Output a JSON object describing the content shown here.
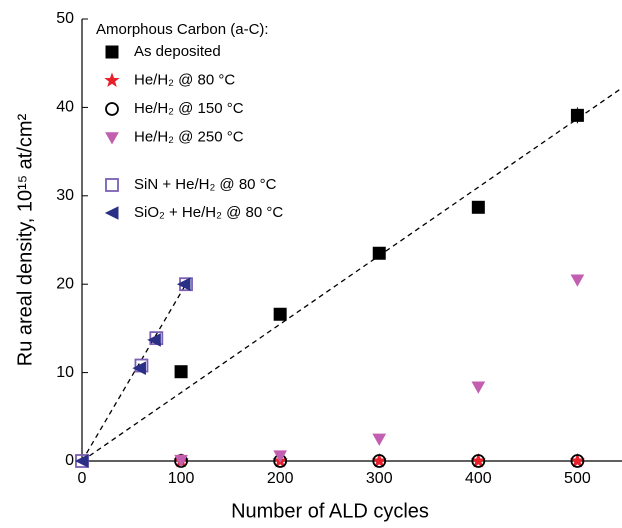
{
  "chart_data": {
    "type": "scatter",
    "x_label": "Number of ALD cycles",
    "y_label": "Ru areal density, 10¹⁵ at/cm²",
    "legend_title": "Amorphous Carbon (a-C):",
    "legend": "upper left",
    "xlim": [
      0,
      545
    ],
    "xticks": [
      0,
      100,
      200,
      300,
      400,
      500
    ],
    "ylim": [
      0,
      50
    ],
    "yticks": [
      0,
      10,
      20,
      30,
      40,
      50
    ],
    "series": [
      {
        "name": "As deposited",
        "color": "#000000",
        "marker": "square",
        "filled": true,
        "x": [
          100,
          200,
          300,
          400,
          500
        ],
        "values": [
          10.1,
          16.6,
          23.5,
          28.7,
          39.1
        ],
        "errors": [
          0.3,
          0.4,
          0.5,
          0.6,
          0.9
        ]
      },
      {
        "name": "He/H₂ @ 80 °C",
        "color": "#e8202a",
        "marker": "star",
        "filled": true,
        "x": [
          100,
          200,
          300,
          400,
          500
        ],
        "values": [
          0,
          0,
          0,
          0,
          0
        ]
      },
      {
        "name": "He/H₂ @ 150 °C",
        "color": "#000000",
        "marker": "circle",
        "filled": false,
        "x": [
          100,
          200,
          300,
          400,
          500
        ],
        "values": [
          0,
          0,
          0,
          0,
          0
        ]
      },
      {
        "name": "He/H₂ @ 250 °C",
        "color": "#c25fb0",
        "marker": "triangle-down",
        "filled": true,
        "x": [
          100,
          200,
          300,
          400,
          500
        ],
        "values": [
          0.1,
          0.6,
          2.5,
          8.4,
          20.5
        ]
      },
      {
        "name": "SiN + He/H₂ @ 80 °C",
        "color": "#7a5fb5",
        "marker": "square",
        "filled": false,
        "x": [
          0,
          60,
          75,
          105
        ],
        "values": [
          0,
          10.8,
          13.9,
          20
        ]
      },
      {
        "name": "SiO₂ + He/H₂ @ 80 °C",
        "color": "#2b2f86",
        "marker": "triangle-left",
        "filled": true,
        "x": [
          0,
          58,
          73,
          103
        ],
        "values": [
          0,
          10.5,
          13.7,
          20
        ]
      }
    ],
    "fits": [
      {
        "x": [
          0,
          545
        ],
        "values": [
          0,
          42.2
        ]
      },
      {
        "x": [
          0,
          108
        ],
        "values": [
          0,
          20.6
        ]
      }
    ]
  }
}
